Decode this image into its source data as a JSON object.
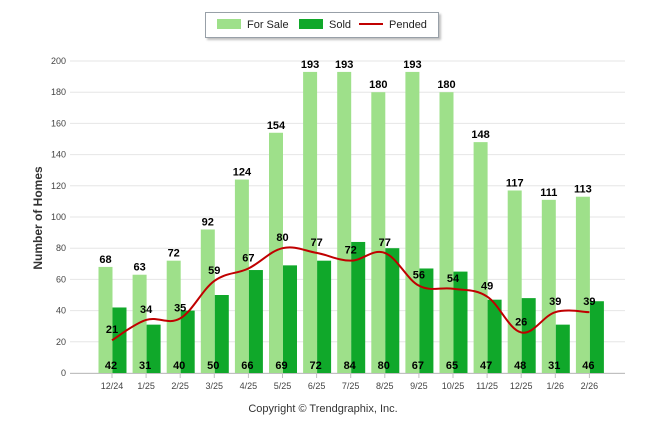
{
  "chart_data": {
    "type": "bar",
    "title": "",
    "xlabel": "",
    "ylabel": "Number of Homes",
    "ylim": [
      0,
      200
    ],
    "yticks": [
      0,
      20,
      40,
      60,
      80,
      100,
      120,
      140,
      160,
      180,
      200
    ],
    "categories": [
      "12/24",
      "1/25",
      "2/25",
      "3/25",
      "4/25",
      "5/25",
      "6/25",
      "7/25",
      "8/25",
      "9/25",
      "10/25",
      "11/25",
      "12/25",
      "1/26",
      "2/26"
    ],
    "series": [
      {
        "name": "For Sale",
        "kind": "bar",
        "color": "#9ee08a",
        "values": [
          68,
          63,
          72,
          92,
          124,
          154,
          193,
          193,
          180,
          193,
          180,
          148,
          117,
          111,
          113
        ]
      },
      {
        "name": "Sold",
        "kind": "bar",
        "color": "#10a82a",
        "values": [
          42,
          31,
          40,
          50,
          66,
          69,
          72,
          84,
          80,
          67,
          65,
          47,
          48,
          31,
          46
        ]
      },
      {
        "name": "Pended",
        "kind": "line",
        "color": "#c00000",
        "values": [
          21,
          34,
          35,
          59,
          67,
          80,
          77,
          72,
          77,
          56,
          54,
          49,
          26,
          39,
          39
        ]
      }
    ],
    "legend_position": "top-center"
  },
  "copyright": "Copyright © Trendgraphix, Inc."
}
